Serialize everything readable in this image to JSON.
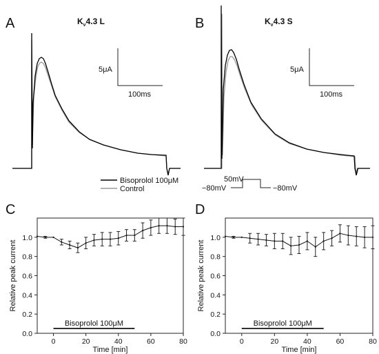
{
  "panels": {
    "A": {
      "letter": "A",
      "title_main": "K",
      "title_sub": "v",
      "title_rest": "4.3 L"
    },
    "B": {
      "letter": "B",
      "title_main": "K",
      "title_sub": "v",
      "title_rest": "4.3 S"
    },
    "C": {
      "letter": "C"
    },
    "D": {
      "letter": "D"
    }
  },
  "scale_bar": {
    "current": "5μA",
    "time": "100ms"
  },
  "legend": {
    "items": [
      {
        "label": "Bisoprolol 100μM",
        "color": "#000000"
      },
      {
        "label": "Control",
        "color": "#9a9a9a"
      }
    ]
  },
  "protocol": {
    "step": "50mV",
    "hold_left": "−80mV",
    "hold_right": "−80mV"
  },
  "treatment_bar": {
    "label": "Bisoprolol 100μM",
    "start": 0,
    "end": 50
  },
  "chart_data": [
    {
      "type": "line",
      "panel": "C",
      "xlabel": "Time [min]",
      "ylabel": "Relative peak current",
      "xlim": [
        -10,
        80
      ],
      "ylim": [
        0,
        1.2
      ],
      "xticks": [
        0,
        20,
        40,
        60,
        80
      ],
      "yticks": [
        0.0,
        0.2,
        0.4,
        0.6,
        0.8,
        1.0
      ],
      "x": [
        -10,
        -5,
        0,
        5,
        10,
        15,
        20,
        25,
        30,
        35,
        40,
        45,
        50,
        55,
        60,
        65,
        70,
        75,
        80
      ],
      "y": [
        1.01,
        1.0,
        1.0,
        0.95,
        0.92,
        0.89,
        0.94,
        0.97,
        0.98,
        0.98,
        0.99,
        1.02,
        1.02,
        1.07,
        1.1,
        1.12,
        1.12,
        1.11,
        1.11
      ],
      "err": [
        0.0,
        0.01,
        0.0,
        0.03,
        0.04,
        0.05,
        0.06,
        0.06,
        0.07,
        0.07,
        0.07,
        0.06,
        0.06,
        0.08,
        0.08,
        0.08,
        0.08,
        0.08,
        0.09
      ]
    },
    {
      "type": "line",
      "panel": "D",
      "xlabel": "Time [min]",
      "ylabel": "Relative peak current",
      "xlim": [
        -10,
        80
      ],
      "ylim": [
        0,
        1.2
      ],
      "xticks": [
        0,
        20,
        40,
        60,
        80
      ],
      "yticks": [
        0.0,
        0.2,
        0.4,
        0.6,
        0.8,
        1.0
      ],
      "x": [
        -10,
        -5,
        0,
        5,
        10,
        15,
        20,
        25,
        30,
        35,
        40,
        45,
        50,
        55,
        60,
        65,
        70,
        75,
        80
      ],
      "y": [
        1.01,
        1.0,
        1.0,
        0.99,
        0.98,
        0.97,
        0.96,
        0.96,
        0.91,
        0.92,
        0.96,
        0.9,
        0.96,
        0.99,
        1.04,
        1.02,
        1.01,
        1.0,
        1.0
      ],
      "err": [
        0.0,
        0.01,
        0.0,
        0.05,
        0.06,
        0.06,
        0.08,
        0.08,
        0.09,
        0.09,
        0.09,
        0.1,
        0.09,
        0.08,
        0.09,
        0.1,
        0.1,
        0.11,
        0.12
      ]
    }
  ]
}
